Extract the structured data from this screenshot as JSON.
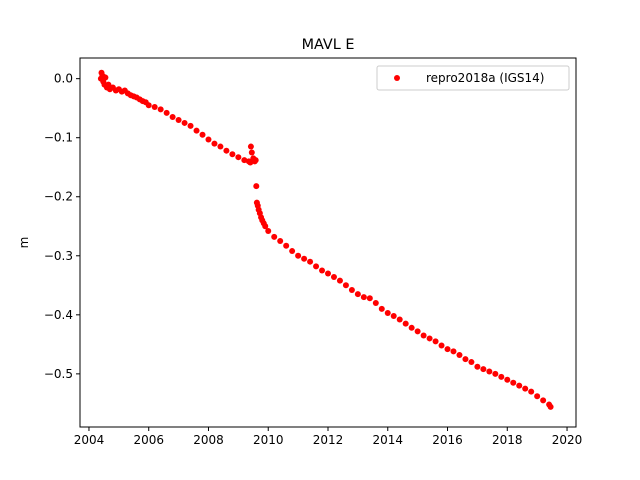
{
  "chart_data": {
    "type": "scatter",
    "title": "MAVL E",
    "xlabel": "",
    "ylabel": "m",
    "xlim": [
      2003.7,
      2020.3
    ],
    "ylim": [
      -0.59,
      0.035
    ],
    "x_ticks": [
      2004,
      2006,
      2008,
      2010,
      2012,
      2014,
      2016,
      2018,
      2020
    ],
    "y_ticks": [
      0.0,
      -0.1,
      -0.2,
      -0.3,
      -0.4,
      -0.5
    ],
    "x_tick_labels": [
      "2004",
      "2006",
      "2008",
      "2010",
      "2012",
      "2014",
      "2016",
      "2018",
      "2020"
    ],
    "y_tick_labels": [
      "0.0",
      "−0.1",
      "−0.2",
      "−0.3",
      "−0.4",
      "−0.5"
    ],
    "grid": false,
    "legend_position": "top-right",
    "series": [
      {
        "name": "repro2018a (IGS14)",
        "color": "#ff0000",
        "marker": "circle",
        "x": [
          2004.4,
          2004.42,
          2004.45,
          2004.48,
          2004.5,
          2004.52,
          2004.55,
          2004.58,
          2004.6,
          2004.65,
          2004.7,
          2004.8,
          2004.9,
          2005.0,
          2005.1,
          2005.2,
          2005.3,
          2005.4,
          2005.5,
          2005.6,
          2005.7,
          2005.8,
          2005.9,
          2006.0,
          2006.2,
          2006.4,
          2006.6,
          2006.8,
          2007.0,
          2007.2,
          2007.4,
          2007.6,
          2007.8,
          2008.0,
          2008.2,
          2008.4,
          2008.6,
          2008.8,
          2009.0,
          2009.2,
          2009.35,
          2009.4,
          2009.42,
          2009.45,
          2009.5,
          2009.55,
          2009.58,
          2009.6,
          2009.62,
          2009.65,
          2009.68,
          2009.72,
          2009.76,
          2009.8,
          2009.85,
          2009.9,
          2010.0,
          2010.2,
          2010.4,
          2010.6,
          2010.8,
          2011.0,
          2011.2,
          2011.4,
          2011.6,
          2011.8,
          2012.0,
          2012.2,
          2012.4,
          2012.6,
          2012.8,
          2013.0,
          2013.2,
          2013.4,
          2013.6,
          2013.8,
          2014.0,
          2014.2,
          2014.4,
          2014.6,
          2014.8,
          2015.0,
          2015.2,
          2015.4,
          2015.6,
          2015.8,
          2016.0,
          2016.2,
          2016.4,
          2016.6,
          2016.8,
          2017.0,
          2017.2,
          2017.4,
          2017.6,
          2017.8,
          2018.0,
          2018.2,
          2018.4,
          2018.6,
          2018.8,
          2019.0,
          2019.2,
          2019.4,
          2019.45
        ],
        "y": [
          0.0,
          0.01,
          0.005,
          -0.005,
          0.003,
          -0.01,
          0.002,
          -0.012,
          -0.015,
          -0.01,
          -0.018,
          -0.015,
          -0.02,
          -0.018,
          -0.022,
          -0.02,
          -0.025,
          -0.028,
          -0.03,
          -0.032,
          -0.035,
          -0.038,
          -0.04,
          -0.045,
          -0.048,
          -0.052,
          -0.058,
          -0.065,
          -0.07,
          -0.075,
          -0.08,
          -0.088,
          -0.095,
          -0.103,
          -0.11,
          -0.115,
          -0.122,
          -0.128,
          -0.133,
          -0.138,
          -0.14,
          -0.142,
          -0.115,
          -0.125,
          -0.135,
          -0.14,
          -0.138,
          -0.182,
          -0.21,
          -0.215,
          -0.222,
          -0.228,
          -0.235,
          -0.24,
          -0.245,
          -0.25,
          -0.258,
          -0.268,
          -0.275,
          -0.283,
          -0.292,
          -0.3,
          -0.305,
          -0.31,
          -0.318,
          -0.325,
          -0.33,
          -0.336,
          -0.342,
          -0.35,
          -0.358,
          -0.365,
          -0.37,
          -0.372,
          -0.38,
          -0.39,
          -0.397,
          -0.402,
          -0.408,
          -0.415,
          -0.422,
          -0.428,
          -0.435,
          -0.44,
          -0.445,
          -0.452,
          -0.458,
          -0.462,
          -0.468,
          -0.475,
          -0.48,
          -0.488,
          -0.492,
          -0.496,
          -0.5,
          -0.505,
          -0.51,
          -0.515,
          -0.52,
          -0.525,
          -0.53,
          -0.538,
          -0.545,
          -0.552,
          -0.556
        ]
      }
    ]
  }
}
